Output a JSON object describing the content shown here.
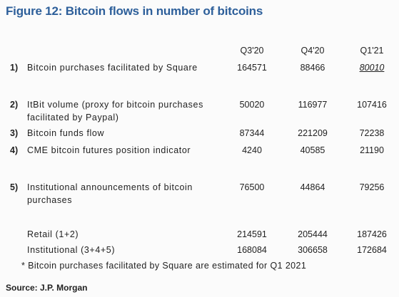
{
  "title": "Figure 12: Bitcoin flows in number of bitcoins",
  "columns": [
    "Q3'20",
    "Q4'20",
    "Q1'21"
  ],
  "rows": [
    {
      "num": "1)",
      "label": "Bitcoin purchases facilitated by Square",
      "values": [
        "164571",
        "88466",
        "80010"
      ]
    },
    {
      "num": "2)",
      "label": "ItBit volume (proxy for bitcoin purchases facilitated by Paypal)",
      "values": [
        "50020",
        "116977",
        "107416"
      ]
    },
    {
      "num": "3)",
      "label": "Bitcoin funds flow",
      "values": [
        "87344",
        "221209",
        "72238"
      ]
    },
    {
      "num": "4)",
      "label": "CME bitcoin futures position indicator",
      "values": [
        "4240",
        "40585",
        "21190"
      ]
    },
    {
      "num": "5)",
      "label": "Institutional announcements of bitcoin purchases",
      "values": [
        "76500",
        "44864",
        "79256"
      ]
    }
  ],
  "summary": [
    {
      "label": "Retail (1+2)",
      "values": [
        "214591",
        "205444",
        "187426"
      ]
    },
    {
      "label": "Institutional (3+4+5)",
      "values": [
        "168084",
        "306658",
        "172684"
      ]
    }
  ],
  "footnote": "* Bitcoin purchases facilitated by Square are estimated for Q1 2021",
  "source": "Source: J.P. Morgan"
}
